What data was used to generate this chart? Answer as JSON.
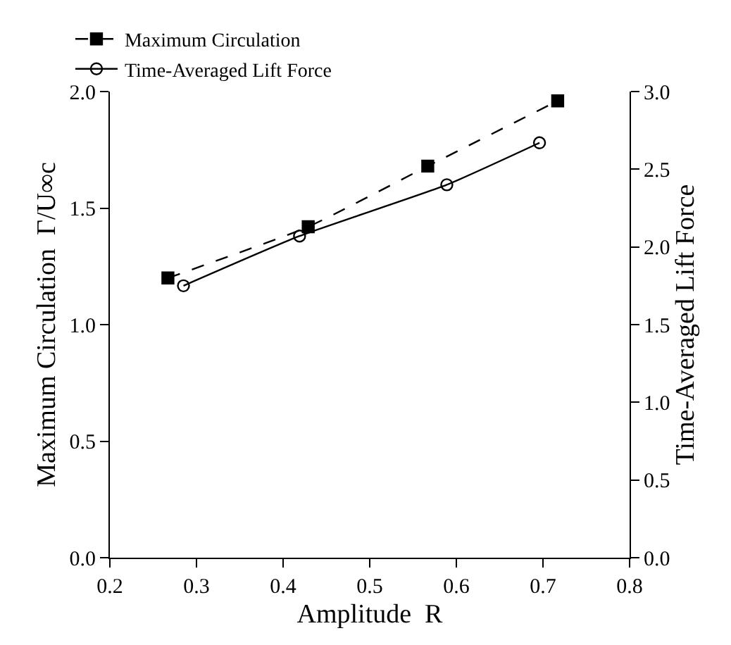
{
  "chart_data": {
    "type": "line",
    "xlabel": "Amplitude  R",
    "ylabel": "Maximum Circulation  Γ/U∞c",
    "y2label": "Time-Averaged Lift Force",
    "series": [
      {
        "name": "Maximum Circulation",
        "color": "#000000",
        "x": [
          0.267,
          0.429,
          0.567,
          0.717
        ],
        "values": [
          1.2,
          1.42,
          1.68,
          1.96
        ],
        "marker": "square",
        "line_style": "dashed"
      },
      {
        "name": "Time-Averaged Lift Force",
        "color": "#000000",
        "x": [
          0.285,
          0.419,
          0.589,
          0.696
        ],
        "values": [
          1.75,
          2.07,
          2.4,
          2.67
        ],
        "marker": "circle-open",
        "line_style": "solid",
        "axis": "y2"
      }
    ],
    "xlim": [
      0.2,
      0.8
    ],
    "xticks": [
      0.2,
      0.3,
      0.4,
      0.5,
      0.6,
      0.7,
      0.8
    ],
    "ylim": [
      0.0,
      2.0
    ],
    "yticks": [
      {
        "value": 0,
        "label": "0.0"
      },
      0.5,
      {
        "value": 1,
        "label": "1.0"
      },
      1.5,
      {
        "value": 2,
        "label": "2.0"
      }
    ],
    "y2lim": [
      0.0,
      3.0
    ],
    "y2ticks": [
      {
        "value": 0,
        "label": "0.0"
      },
      0.5,
      {
        "value": 1,
        "label": "1.0"
      },
      1.5,
      {
        "value": 2,
        "label": "2.0"
      },
      2.5,
      {
        "value": 3,
        "label": "3.0"
      }
    ],
    "legend": "top left"
  }
}
